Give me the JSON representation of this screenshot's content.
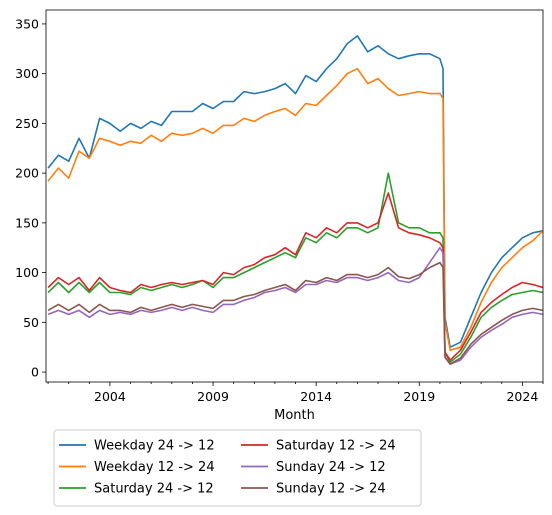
{
  "chart_data": {
    "type": "line",
    "title": "",
    "xlabel": "Month",
    "ylabel": "",
    "xlim": [
      2000.9,
      2025.0
    ],
    "ylim": [
      -10,
      364
    ],
    "grid": false,
    "legend_position": "below",
    "x_ticks": [
      2004,
      2009,
      2014,
      2019,
      2024
    ],
    "x_tick_labels": [
      "2004",
      "2009",
      "2014",
      "2019",
      "2024"
    ],
    "y_ticks": [
      0,
      50,
      100,
      150,
      200,
      250,
      300,
      350
    ],
    "y_tick_labels": [
      "0",
      "50",
      "100",
      "150",
      "200",
      "250",
      "300",
      "350"
    ],
    "series": [
      {
        "name": "Weekday 24 -> 12",
        "color": "#1f77b4",
        "points": [
          [
            2001.0,
            205
          ],
          [
            2001.5,
            218
          ],
          [
            2002.0,
            212
          ],
          [
            2002.5,
            235
          ],
          [
            2003.0,
            215
          ],
          [
            2003.5,
            255
          ],
          [
            2004.0,
            250
          ],
          [
            2004.5,
            242
          ],
          [
            2005.0,
            250
          ],
          [
            2005.5,
            245
          ],
          [
            2006.0,
            252
          ],
          [
            2006.5,
            248
          ],
          [
            2007.0,
            262
          ],
          [
            2007.5,
            262
          ],
          [
            2008.0,
            262
          ],
          [
            2008.5,
            270
          ],
          [
            2009.0,
            265
          ],
          [
            2009.5,
            272
          ],
          [
            2010.0,
            272
          ],
          [
            2010.5,
            282
          ],
          [
            2011.0,
            280
          ],
          [
            2011.5,
            282
          ],
          [
            2012.0,
            285
          ],
          [
            2012.5,
            290
          ],
          [
            2013.0,
            280
          ],
          [
            2013.5,
            298
          ],
          [
            2014.0,
            292
          ],
          [
            2014.5,
            305
          ],
          [
            2015.0,
            315
          ],
          [
            2015.5,
            330
          ],
          [
            2016.0,
            338
          ],
          [
            2016.5,
            322
          ],
          [
            2017.0,
            328
          ],
          [
            2017.5,
            320
          ],
          [
            2018.0,
            315
          ],
          [
            2018.5,
            318
          ],
          [
            2019.0,
            320
          ],
          [
            2019.5,
            320
          ],
          [
            2020.0,
            315
          ],
          [
            2020.15,
            305
          ],
          [
            2020.25,
            55
          ],
          [
            2020.5,
            25
          ],
          [
            2021.0,
            30
          ],
          [
            2021.5,
            55
          ],
          [
            2022.0,
            80
          ],
          [
            2022.5,
            100
          ],
          [
            2023.0,
            115
          ],
          [
            2023.5,
            125
          ],
          [
            2024.0,
            135
          ],
          [
            2024.5,
            140
          ],
          [
            2025.0,
            142
          ]
        ]
      },
      {
        "name": "Weekday 12 -> 24",
        "color": "#ff7f0e",
        "points": [
          [
            2001.0,
            192
          ],
          [
            2001.5,
            205
          ],
          [
            2002.0,
            195
          ],
          [
            2002.5,
            222
          ],
          [
            2003.0,
            215
          ],
          [
            2003.5,
            235
          ],
          [
            2004.0,
            232
          ],
          [
            2004.5,
            228
          ],
          [
            2005.0,
            232
          ],
          [
            2005.5,
            230
          ],
          [
            2006.0,
            238
          ],
          [
            2006.5,
            232
          ],
          [
            2007.0,
            240
          ],
          [
            2007.5,
            238
          ],
          [
            2008.0,
            240
          ],
          [
            2008.5,
            245
          ],
          [
            2009.0,
            240
          ],
          [
            2009.5,
            248
          ],
          [
            2010.0,
            248
          ],
          [
            2010.5,
            255
          ],
          [
            2011.0,
            252
          ],
          [
            2011.5,
            258
          ],
          [
            2012.0,
            262
          ],
          [
            2012.5,
            265
          ],
          [
            2013.0,
            258
          ],
          [
            2013.5,
            270
          ],
          [
            2014.0,
            268
          ],
          [
            2014.5,
            278
          ],
          [
            2015.0,
            288
          ],
          [
            2015.5,
            300
          ],
          [
            2016.0,
            305
          ],
          [
            2016.5,
            290
          ],
          [
            2017.0,
            295
          ],
          [
            2017.5,
            285
          ],
          [
            2018.0,
            278
          ],
          [
            2018.5,
            280
          ],
          [
            2019.0,
            282
          ],
          [
            2019.5,
            280
          ],
          [
            2020.0,
            280
          ],
          [
            2020.15,
            275
          ],
          [
            2020.25,
            50
          ],
          [
            2020.5,
            22
          ],
          [
            2021.0,
            25
          ],
          [
            2021.5,
            45
          ],
          [
            2022.0,
            70
          ],
          [
            2022.5,
            90
          ],
          [
            2023.0,
            105
          ],
          [
            2023.5,
            115
          ],
          [
            2024.0,
            125
          ],
          [
            2024.5,
            132
          ],
          [
            2025.0,
            142
          ]
        ]
      },
      {
        "name": "Saturday 24 -> 12",
        "color": "#2ca02c",
        "points": [
          [
            2001.0,
            80
          ],
          [
            2001.5,
            90
          ],
          [
            2002.0,
            80
          ],
          [
            2002.5,
            90
          ],
          [
            2003.0,
            80
          ],
          [
            2003.5,
            90
          ],
          [
            2004.0,
            80
          ],
          [
            2004.5,
            80
          ],
          [
            2005.0,
            78
          ],
          [
            2005.5,
            85
          ],
          [
            2006.0,
            82
          ],
          [
            2006.5,
            85
          ],
          [
            2007.0,
            88
          ],
          [
            2007.5,
            85
          ],
          [
            2008.0,
            88
          ],
          [
            2008.5,
            92
          ],
          [
            2009.0,
            85
          ],
          [
            2009.5,
            95
          ],
          [
            2010.0,
            95
          ],
          [
            2010.5,
            100
          ],
          [
            2011.0,
            105
          ],
          [
            2011.5,
            110
          ],
          [
            2012.0,
            115
          ],
          [
            2012.5,
            120
          ],
          [
            2013.0,
            115
          ],
          [
            2013.5,
            135
          ],
          [
            2014.0,
            130
          ],
          [
            2014.5,
            140
          ],
          [
            2015.0,
            135
          ],
          [
            2015.5,
            145
          ],
          [
            2016.0,
            145
          ],
          [
            2016.5,
            140
          ],
          [
            2017.0,
            145
          ],
          [
            2017.5,
            200
          ],
          [
            2018.0,
            150
          ],
          [
            2018.5,
            145
          ],
          [
            2019.0,
            145
          ],
          [
            2019.5,
            140
          ],
          [
            2020.0,
            140
          ],
          [
            2020.15,
            135
          ],
          [
            2020.25,
            20
          ],
          [
            2020.5,
            10
          ],
          [
            2021.0,
            18
          ],
          [
            2021.5,
            35
          ],
          [
            2022.0,
            55
          ],
          [
            2022.5,
            65
          ],
          [
            2023.0,
            72
          ],
          [
            2023.5,
            78
          ],
          [
            2024.0,
            80
          ],
          [
            2024.5,
            82
          ],
          [
            2025.0,
            80
          ]
        ]
      },
      {
        "name": "Saturday 12 -> 24",
        "color": "#d62728",
        "points": [
          [
            2001.0,
            85
          ],
          [
            2001.5,
            95
          ],
          [
            2002.0,
            88
          ],
          [
            2002.5,
            95
          ],
          [
            2003.0,
            82
          ],
          [
            2003.5,
            95
          ],
          [
            2004.0,
            85
          ],
          [
            2004.5,
            82
          ],
          [
            2005.0,
            80
          ],
          [
            2005.5,
            88
          ],
          [
            2006.0,
            85
          ],
          [
            2006.5,
            88
          ],
          [
            2007.0,
            90
          ],
          [
            2007.5,
            88
          ],
          [
            2008.0,
            90
          ],
          [
            2008.5,
            92
          ],
          [
            2009.0,
            88
          ],
          [
            2009.5,
            100
          ],
          [
            2010.0,
            98
          ],
          [
            2010.5,
            105
          ],
          [
            2011.0,
            108
          ],
          [
            2011.5,
            115
          ],
          [
            2012.0,
            118
          ],
          [
            2012.5,
            125
          ],
          [
            2013.0,
            118
          ],
          [
            2013.5,
            140
          ],
          [
            2014.0,
            135
          ],
          [
            2014.5,
            145
          ],
          [
            2015.0,
            140
          ],
          [
            2015.5,
            150
          ],
          [
            2016.0,
            150
          ],
          [
            2016.5,
            145
          ],
          [
            2017.0,
            150
          ],
          [
            2017.5,
            180
          ],
          [
            2018.0,
            145
          ],
          [
            2018.5,
            140
          ],
          [
            2019.0,
            138
          ],
          [
            2019.5,
            135
          ],
          [
            2020.0,
            130
          ],
          [
            2020.15,
            125
          ],
          [
            2020.25,
            20
          ],
          [
            2020.5,
            12
          ],
          [
            2021.0,
            22
          ],
          [
            2021.5,
            40
          ],
          [
            2022.0,
            60
          ],
          [
            2022.5,
            70
          ],
          [
            2023.0,
            78
          ],
          [
            2023.5,
            85
          ],
          [
            2024.0,
            90
          ],
          [
            2024.5,
            88
          ],
          [
            2025.0,
            85
          ]
        ]
      },
      {
        "name": "Sunday 24 -> 12",
        "color": "#9467bd",
        "points": [
          [
            2001.0,
            58
          ],
          [
            2001.5,
            62
          ],
          [
            2002.0,
            58
          ],
          [
            2002.5,
            62
          ],
          [
            2003.0,
            55
          ],
          [
            2003.5,
            62
          ],
          [
            2004.0,
            58
          ],
          [
            2004.5,
            60
          ],
          [
            2005.0,
            58
          ],
          [
            2005.5,
            62
          ],
          [
            2006.0,
            60
          ],
          [
            2006.5,
            62
          ],
          [
            2007.0,
            65
          ],
          [
            2007.5,
            62
          ],
          [
            2008.0,
            65
          ],
          [
            2008.5,
            62
          ],
          [
            2009.0,
            60
          ],
          [
            2009.5,
            68
          ],
          [
            2010.0,
            68
          ],
          [
            2010.5,
            72
          ],
          [
            2011.0,
            75
          ],
          [
            2011.5,
            80
          ],
          [
            2012.0,
            82
          ],
          [
            2012.5,
            85
          ],
          [
            2013.0,
            80
          ],
          [
            2013.5,
            88
          ],
          [
            2014.0,
            88
          ],
          [
            2014.5,
            92
          ],
          [
            2015.0,
            90
          ],
          [
            2015.5,
            95
          ],
          [
            2016.0,
            95
          ],
          [
            2016.5,
            92
          ],
          [
            2017.0,
            95
          ],
          [
            2017.5,
            100
          ],
          [
            2018.0,
            92
          ],
          [
            2018.5,
            90
          ],
          [
            2019.0,
            95
          ],
          [
            2019.5,
            110
          ],
          [
            2020.0,
            125
          ],
          [
            2020.15,
            120
          ],
          [
            2020.25,
            15
          ],
          [
            2020.5,
            8
          ],
          [
            2021.0,
            12
          ],
          [
            2021.5,
            25
          ],
          [
            2022.0,
            35
          ],
          [
            2022.5,
            42
          ],
          [
            2023.0,
            48
          ],
          [
            2023.5,
            55
          ],
          [
            2024.0,
            58
          ],
          [
            2024.5,
            60
          ],
          [
            2025.0,
            58
          ]
        ]
      },
      {
        "name": "Sunday 12 -> 24",
        "color": "#8c564b",
        "points": [
          [
            2001.0,
            62
          ],
          [
            2001.5,
            68
          ],
          [
            2002.0,
            62
          ],
          [
            2002.5,
            68
          ],
          [
            2003.0,
            60
          ],
          [
            2003.5,
            68
          ],
          [
            2004.0,
            62
          ],
          [
            2004.5,
            62
          ],
          [
            2005.0,
            60
          ],
          [
            2005.5,
            65
          ],
          [
            2006.0,
            62
          ],
          [
            2006.5,
            65
          ],
          [
            2007.0,
            68
          ],
          [
            2007.5,
            65
          ],
          [
            2008.0,
            68
          ],
          [
            2008.5,
            66
          ],
          [
            2009.0,
            64
          ],
          [
            2009.5,
            72
          ],
          [
            2010.0,
            72
          ],
          [
            2010.5,
            76
          ],
          [
            2011.0,
            78
          ],
          [
            2011.5,
            82
          ],
          [
            2012.0,
            85
          ],
          [
            2012.5,
            88
          ],
          [
            2013.0,
            82
          ],
          [
            2013.5,
            92
          ],
          [
            2014.0,
            90
          ],
          [
            2014.5,
            95
          ],
          [
            2015.0,
            92
          ],
          [
            2015.5,
            98
          ],
          [
            2016.0,
            98
          ],
          [
            2016.5,
            95
          ],
          [
            2017.0,
            98
          ],
          [
            2017.5,
            105
          ],
          [
            2018.0,
            96
          ],
          [
            2018.5,
            94
          ],
          [
            2019.0,
            98
          ],
          [
            2019.5,
            105
          ],
          [
            2020.0,
            110
          ],
          [
            2020.15,
            105
          ],
          [
            2020.25,
            15
          ],
          [
            2020.5,
            8
          ],
          [
            2021.0,
            14
          ],
          [
            2021.5,
            28
          ],
          [
            2022.0,
            38
          ],
          [
            2022.5,
            45
          ],
          [
            2023.0,
            52
          ],
          [
            2023.5,
            58
          ],
          [
            2024.0,
            62
          ],
          [
            2024.5,
            64
          ],
          [
            2025.0,
            62
          ]
        ]
      }
    ]
  }
}
